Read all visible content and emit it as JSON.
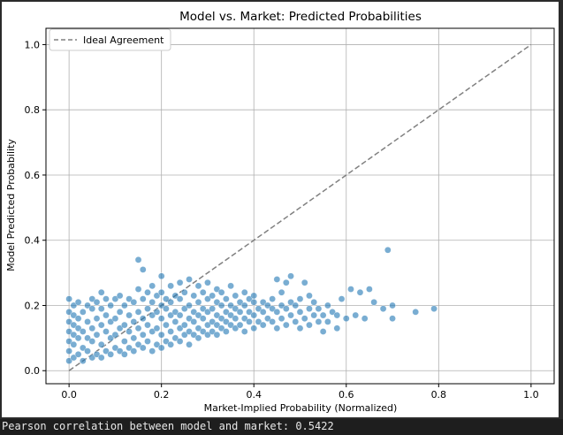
{
  "output": {
    "console_text": "Pearson correlation between model and market: 0.5422"
  },
  "colors": {
    "points": "#1f77b4",
    "ideal_line": "#808080",
    "grid": "#b0b0b0",
    "page_background": "#1e1e1e",
    "console_text": "#e8e8e8"
  },
  "chart_data": {
    "type": "scatter",
    "title": "Model vs. Market: Predicted Probabilities",
    "xlabel": "Market-Implied Probability (Normalized)",
    "ylabel": "Model Predicted Probability",
    "xlim": [
      -0.05,
      1.05
    ],
    "ylim": [
      -0.04,
      1.05
    ],
    "xticks": [
      0.0,
      0.2,
      0.4,
      0.6,
      0.8,
      1.0
    ],
    "yticks": [
      0.0,
      0.2,
      0.4,
      0.6,
      0.8,
      1.0
    ],
    "xtick_labels": [
      "0.0",
      "0.2",
      "0.4",
      "0.6",
      "0.8",
      "1.0"
    ],
    "ytick_labels": [
      "0.0",
      "0.2",
      "0.4",
      "0.6",
      "0.8",
      "1.0"
    ],
    "grid": true,
    "legend": {
      "placement": "top-left",
      "entries": [
        {
          "label": "Ideal Agreement",
          "style": "dashed"
        }
      ]
    },
    "series": [
      {
        "kind": "reference-line",
        "points": [
          [
            0.0,
            0.0
          ],
          [
            1.0,
            1.0
          ]
        ]
      },
      {
        "kind": "scatter",
        "points": [
          [
            0.0,
            0.03
          ],
          [
            0.0,
            0.06
          ],
          [
            0.0,
            0.09
          ],
          [
            0.0,
            0.12
          ],
          [
            0.0,
            0.15
          ],
          [
            0.0,
            0.18
          ],
          [
            0.0,
            0.22
          ],
          [
            0.01,
            0.04
          ],
          [
            0.01,
            0.08
          ],
          [
            0.01,
            0.11
          ],
          [
            0.01,
            0.14
          ],
          [
            0.01,
            0.17
          ],
          [
            0.01,
            0.2
          ],
          [
            0.02,
            0.05
          ],
          [
            0.02,
            0.1
          ],
          [
            0.02,
            0.13
          ],
          [
            0.02,
            0.16
          ],
          [
            0.02,
            0.21
          ],
          [
            0.03,
            0.03
          ],
          [
            0.03,
            0.07
          ],
          [
            0.03,
            0.12
          ],
          [
            0.03,
            0.18
          ],
          [
            0.04,
            0.06
          ],
          [
            0.04,
            0.1
          ],
          [
            0.04,
            0.15
          ],
          [
            0.04,
            0.2
          ],
          [
            0.05,
            0.04
          ],
          [
            0.05,
            0.09
          ],
          [
            0.05,
            0.13
          ],
          [
            0.05,
            0.19
          ],
          [
            0.05,
            0.22
          ],
          [
            0.06,
            0.05
          ],
          [
            0.06,
            0.11
          ],
          [
            0.06,
            0.16
          ],
          [
            0.06,
            0.21
          ],
          [
            0.07,
            0.04
          ],
          [
            0.07,
            0.08
          ],
          [
            0.07,
            0.14
          ],
          [
            0.07,
            0.19
          ],
          [
            0.07,
            0.24
          ],
          [
            0.08,
            0.06
          ],
          [
            0.08,
            0.12
          ],
          [
            0.08,
            0.17
          ],
          [
            0.08,
            0.22
          ],
          [
            0.09,
            0.05
          ],
          [
            0.09,
            0.1
          ],
          [
            0.09,
            0.15
          ],
          [
            0.09,
            0.2
          ],
          [
            0.1,
            0.07
          ],
          [
            0.1,
            0.11
          ],
          [
            0.1,
            0.16
          ],
          [
            0.1,
            0.22
          ],
          [
            0.11,
            0.06
          ],
          [
            0.11,
            0.13
          ],
          [
            0.11,
            0.18
          ],
          [
            0.11,
            0.23
          ],
          [
            0.12,
            0.05
          ],
          [
            0.12,
            0.09
          ],
          [
            0.12,
            0.14
          ],
          [
            0.12,
            0.2
          ],
          [
            0.13,
            0.07
          ],
          [
            0.13,
            0.12
          ],
          [
            0.13,
            0.17
          ],
          [
            0.13,
            0.22
          ],
          [
            0.14,
            0.06
          ],
          [
            0.14,
            0.1
          ],
          [
            0.14,
            0.15
          ],
          [
            0.14,
            0.21
          ],
          [
            0.15,
            0.08
          ],
          [
            0.15,
            0.13
          ],
          [
            0.15,
            0.18
          ],
          [
            0.15,
            0.25
          ],
          [
            0.15,
            0.34
          ],
          [
            0.16,
            0.07
          ],
          [
            0.16,
            0.11
          ],
          [
            0.16,
            0.16
          ],
          [
            0.16,
            0.22
          ],
          [
            0.16,
            0.31
          ],
          [
            0.17,
            0.09
          ],
          [
            0.17,
            0.14
          ],
          [
            0.17,
            0.19
          ],
          [
            0.17,
            0.24
          ],
          [
            0.18,
            0.06
          ],
          [
            0.18,
            0.12
          ],
          [
            0.18,
            0.17
          ],
          [
            0.18,
            0.21
          ],
          [
            0.18,
            0.26
          ],
          [
            0.19,
            0.08
          ],
          [
            0.19,
            0.13
          ],
          [
            0.19,
            0.18
          ],
          [
            0.19,
            0.23
          ],
          [
            0.2,
            0.07
          ],
          [
            0.2,
            0.11
          ],
          [
            0.2,
            0.16
          ],
          [
            0.2,
            0.2
          ],
          [
            0.2,
            0.24
          ],
          [
            0.2,
            0.29
          ],
          [
            0.21,
            0.09
          ],
          [
            0.21,
            0.14
          ],
          [
            0.21,
            0.19
          ],
          [
            0.21,
            0.22
          ],
          [
            0.22,
            0.08
          ],
          [
            0.22,
            0.12
          ],
          [
            0.22,
            0.17
          ],
          [
            0.22,
            0.21
          ],
          [
            0.22,
            0.26
          ],
          [
            0.23,
            0.1
          ],
          [
            0.23,
            0.15
          ],
          [
            0.23,
            0.18
          ],
          [
            0.23,
            0.23
          ],
          [
            0.24,
            0.09
          ],
          [
            0.24,
            0.13
          ],
          [
            0.24,
            0.17
          ],
          [
            0.24,
            0.22
          ],
          [
            0.24,
            0.27
          ],
          [
            0.25,
            0.11
          ],
          [
            0.25,
            0.14
          ],
          [
            0.25,
            0.19
          ],
          [
            0.25,
            0.24
          ],
          [
            0.26,
            0.08
          ],
          [
            0.26,
            0.12
          ],
          [
            0.26,
            0.16
          ],
          [
            0.26,
            0.2
          ],
          [
            0.26,
            0.28
          ],
          [
            0.27,
            0.11
          ],
          [
            0.27,
            0.15
          ],
          [
            0.27,
            0.18
          ],
          [
            0.27,
            0.23
          ],
          [
            0.28,
            0.1
          ],
          [
            0.28,
            0.13
          ],
          [
            0.28,
            0.17
          ],
          [
            0.28,
            0.21
          ],
          [
            0.28,
            0.26
          ],
          [
            0.29,
            0.12
          ],
          [
            0.29,
            0.16
          ],
          [
            0.29,
            0.19
          ],
          [
            0.29,
            0.24
          ],
          [
            0.3,
            0.11
          ],
          [
            0.3,
            0.14
          ],
          [
            0.3,
            0.18
          ],
          [
            0.3,
            0.22
          ],
          [
            0.3,
            0.27
          ],
          [
            0.31,
            0.12
          ],
          [
            0.31,
            0.15
          ],
          [
            0.31,
            0.19
          ],
          [
            0.31,
            0.23
          ],
          [
            0.32,
            0.11
          ],
          [
            0.32,
            0.14
          ],
          [
            0.32,
            0.17
          ],
          [
            0.32,
            0.21
          ],
          [
            0.32,
            0.25
          ],
          [
            0.33,
            0.13
          ],
          [
            0.33,
            0.16
          ],
          [
            0.33,
            0.2
          ],
          [
            0.33,
            0.24
          ],
          [
            0.34,
            0.12
          ],
          [
            0.34,
            0.15
          ],
          [
            0.34,
            0.18
          ],
          [
            0.34,
            0.22
          ],
          [
            0.35,
            0.14
          ],
          [
            0.35,
            0.17
          ],
          [
            0.35,
            0.2
          ],
          [
            0.35,
            0.26
          ],
          [
            0.36,
            0.13
          ],
          [
            0.36,
            0.16
          ],
          [
            0.36,
            0.19
          ],
          [
            0.36,
            0.23
          ],
          [
            0.37,
            0.14
          ],
          [
            0.37,
            0.18
          ],
          [
            0.37,
            0.21
          ],
          [
            0.38,
            0.12
          ],
          [
            0.38,
            0.16
          ],
          [
            0.38,
            0.2
          ],
          [
            0.38,
            0.24
          ],
          [
            0.39,
            0.15
          ],
          [
            0.39,
            0.18
          ],
          [
            0.39,
            0.22
          ],
          [
            0.4,
            0.13
          ],
          [
            0.4,
            0.17
          ],
          [
            0.4,
            0.21
          ],
          [
            0.4,
            0.23
          ],
          [
            0.41,
            0.15
          ],
          [
            0.41,
            0.19
          ],
          [
            0.42,
            0.14
          ],
          [
            0.42,
            0.18
          ],
          [
            0.42,
            0.21
          ],
          [
            0.43,
            0.16
          ],
          [
            0.43,
            0.2
          ],
          [
            0.44,
            0.15
          ],
          [
            0.44,
            0.19
          ],
          [
            0.44,
            0.22
          ],
          [
            0.45,
            0.13
          ],
          [
            0.45,
            0.18
          ],
          [
            0.45,
            0.28
          ],
          [
            0.46,
            0.16
          ],
          [
            0.46,
            0.2
          ],
          [
            0.46,
            0.24
          ],
          [
            0.47,
            0.14
          ],
          [
            0.47,
            0.19
          ],
          [
            0.47,
            0.27
          ],
          [
            0.48,
            0.17
          ],
          [
            0.48,
            0.21
          ],
          [
            0.48,
            0.29
          ],
          [
            0.49,
            0.15
          ],
          [
            0.49,
            0.2
          ],
          [
            0.5,
            0.13
          ],
          [
            0.5,
            0.18
          ],
          [
            0.5,
            0.22
          ],
          [
            0.51,
            0.16
          ],
          [
            0.51,
            0.27
          ],
          [
            0.52,
            0.14
          ],
          [
            0.52,
            0.19
          ],
          [
            0.52,
            0.23
          ],
          [
            0.53,
            0.17
          ],
          [
            0.53,
            0.21
          ],
          [
            0.54,
            0.15
          ],
          [
            0.54,
            0.19
          ],
          [
            0.55,
            0.12
          ],
          [
            0.55,
            0.17
          ],
          [
            0.56,
            0.2
          ],
          [
            0.56,
            0.15
          ],
          [
            0.57,
            0.18
          ],
          [
            0.58,
            0.13
          ],
          [
            0.58,
            0.17
          ],
          [
            0.59,
            0.22
          ],
          [
            0.6,
            0.16
          ],
          [
            0.61,
            0.25
          ],
          [
            0.62,
            0.17
          ],
          [
            0.63,
            0.24
          ],
          [
            0.64,
            0.16
          ],
          [
            0.65,
            0.25
          ],
          [
            0.66,
            0.21
          ],
          [
            0.68,
            0.19
          ],
          [
            0.69,
            0.37
          ],
          [
            0.7,
            0.2
          ],
          [
            0.7,
            0.16
          ],
          [
            0.75,
            0.18
          ],
          [
            0.79,
            0.19
          ]
        ]
      }
    ]
  }
}
